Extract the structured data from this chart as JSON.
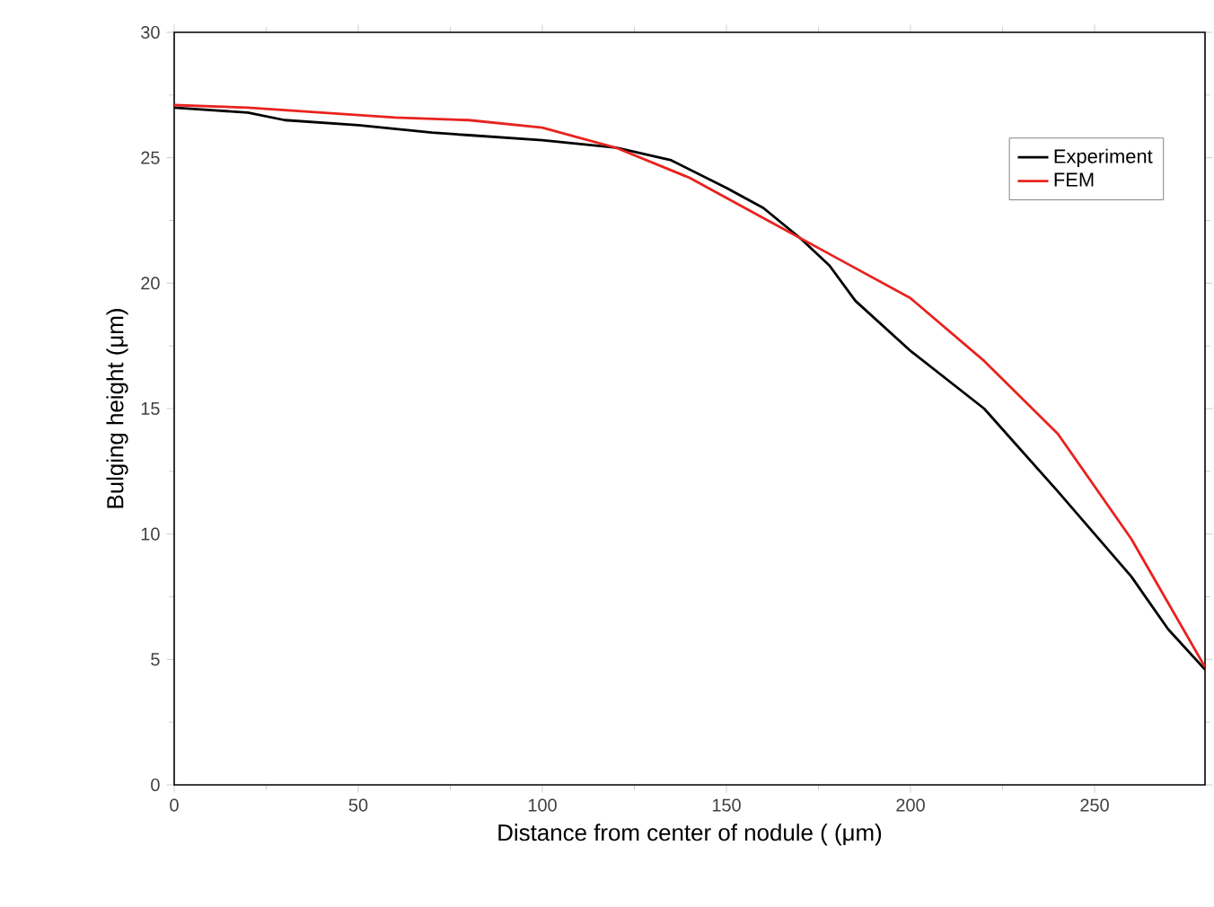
{
  "chart_data": {
    "type": "line",
    "xlabel": "Distance from center of nodule ( (μm)",
    "ylabel": "Bulging height (μm)",
    "xlim": [
      0,
      280
    ],
    "xticks": [
      0,
      50,
      100,
      150,
      200,
      250
    ],
    "ylim": [
      0,
      30
    ],
    "yticks": [
      0,
      5,
      10,
      15,
      20,
      25,
      30
    ],
    "legend": "top right",
    "grid": false,
    "marker": "none",
    "line_style": "solid",
    "series": [
      {
        "name": "Experiment",
        "color": "#000000",
        "x": [
          0,
          10,
          20,
          30,
          50,
          70,
          80,
          100,
          120,
          135,
          150,
          160,
          170,
          178,
          185,
          200,
          220,
          240,
          260,
          270,
          280
        ],
        "values": [
          27.0,
          26.9,
          26.8,
          26.5,
          26.3,
          26.0,
          25.9,
          25.7,
          25.4,
          24.9,
          23.8,
          23.0,
          21.8,
          20.7,
          19.3,
          17.3,
          15.0,
          11.7,
          8.3,
          6.2,
          4.6
        ]
      },
      {
        "name": "FEM",
        "color": "#e8231f",
        "x": [
          0,
          20,
          40,
          60,
          80,
          100,
          110,
          120,
          140,
          160,
          180,
          200,
          220,
          240,
          260,
          280
        ],
        "values": [
          27.1,
          27.0,
          26.8,
          26.6,
          26.5,
          26.2,
          25.8,
          25.4,
          24.2,
          22.6,
          21.0,
          19.4,
          16.9,
          14.0,
          9.8,
          4.7
        ]
      }
    ]
  }
}
